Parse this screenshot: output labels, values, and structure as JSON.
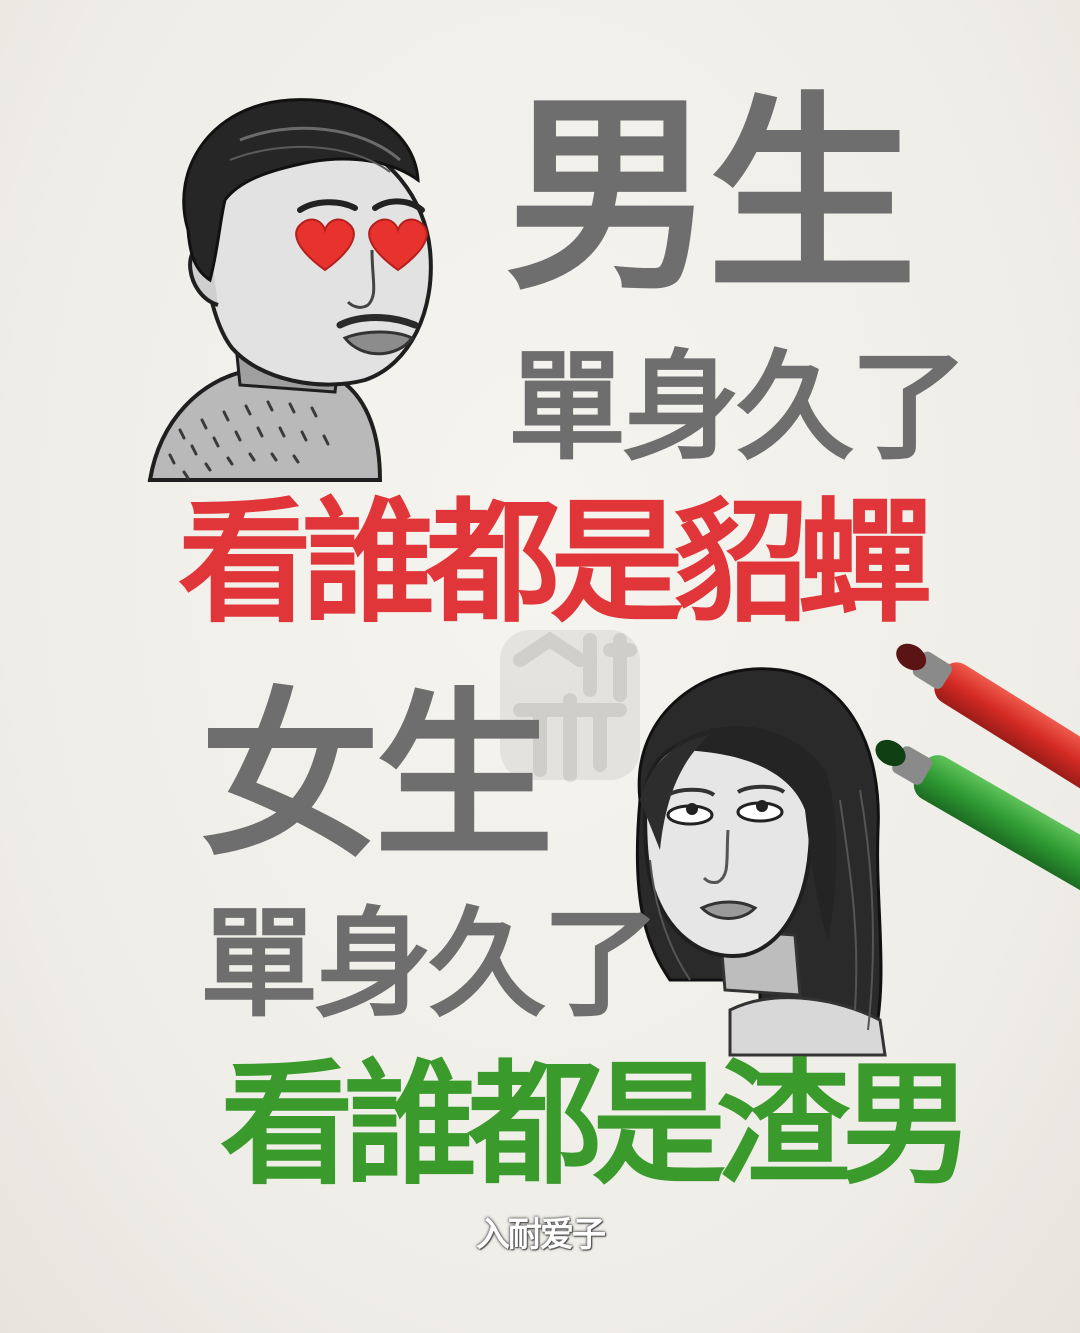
{
  "male": {
    "title": "男生",
    "subtitle": "單身久了",
    "punchline": "看誰都是貂蟬",
    "title_color": "#6e6e6e",
    "punchline_color": "#e0363a"
  },
  "female": {
    "title": "女生",
    "subtitle": "單身久了",
    "punchline": "看誰都是渣男",
    "title_color": "#6e6e6e",
    "punchline_color": "#3a9a2c"
  },
  "signature": "入耐爱子",
  "decor": {
    "heart_color": "#e8322e",
    "red_marker_color": "#d32a24",
    "green_marker_color": "#2f9a33"
  }
}
